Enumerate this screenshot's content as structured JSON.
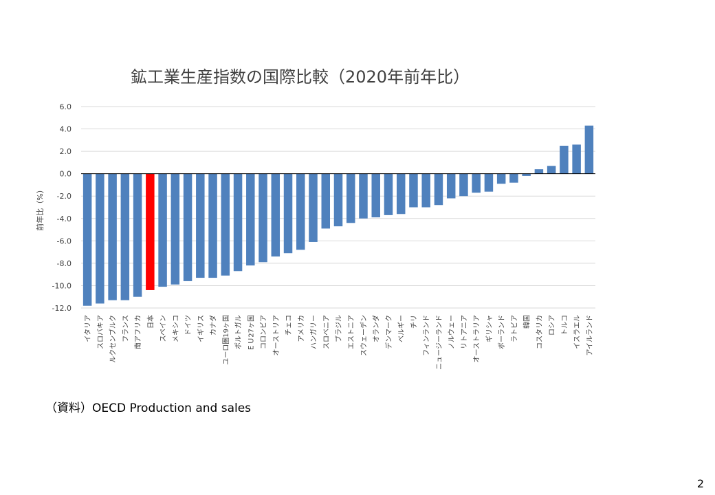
{
  "slide": {
    "title": "鉱工業生産指数の国際比較（2020年前年比）",
    "source": "（資料）OECD Production and sales",
    "page_number": "2"
  },
  "colors": {
    "bar": "#4f81bd",
    "highlight": "#ff0000",
    "grid": "#d9d9d9",
    "axis_text": "#404040",
    "zero_line": "#000000"
  },
  "chart_data": {
    "type": "bar",
    "title": "鉱工業生産指数の国際比較（2020年前年比）",
    "ylabel": "前年比（%）",
    "xlabel": "",
    "ylim": [
      -12,
      6
    ],
    "yticks": [
      6,
      4,
      2,
      0,
      -2,
      -4,
      -6,
      -8,
      -10,
      -12
    ],
    "ytick_labels": [
      "6.0",
      "4.0",
      "2.0",
      "0.0",
      "-2.0",
      "-4.0",
      "-6.0",
      "-8.0",
      "-10.0",
      "-12.0"
    ],
    "grid": true,
    "highlight_category": "日本",
    "categories": [
      "イタリア",
      "スロバキア",
      "ルクセンブルク",
      "フランス",
      "南アフリカ",
      "日本",
      "スペイン",
      "メキシコ",
      "ドイツ",
      "イギリス",
      "カナダ",
      "ユーロ圏19ヶ国",
      "ポルトガル",
      "ＥＵ27ヶ国",
      "コロンビア",
      "オーストリア",
      "チェコ",
      "アメリカ",
      "ハンガリー",
      "スロベニア",
      "ブラジル",
      "エストニア",
      "スウェーデン",
      "オランダ",
      "デンマーク",
      "ベルギー",
      "チリ",
      "フィンランド",
      "ニュージーランド",
      "ノルウェー",
      "リトアニア",
      "オーストラリア",
      "ギリシャ",
      "ポーランド",
      "ラトビア",
      "韓国",
      "コスタリカ",
      "ロシア",
      "トルコ",
      "イスラエル",
      "アイルランド"
    ],
    "values": [
      -11.8,
      -11.6,
      -11.3,
      -11.3,
      -11.0,
      -10.4,
      -10.1,
      -9.9,
      -9.6,
      -9.3,
      -9.3,
      -9.1,
      -8.7,
      -8.2,
      -7.9,
      -7.4,
      -7.1,
      -6.8,
      -6.1,
      -4.9,
      -4.7,
      -4.4,
      -4.0,
      -3.9,
      -3.7,
      -3.6,
      -3.0,
      -3.0,
      -2.8,
      -2.2,
      -2.0,
      -1.7,
      -1.6,
      -0.9,
      -0.8,
      -0.2,
      0.4,
      0.7,
      2.5,
      2.6,
      4.3
    ]
  }
}
